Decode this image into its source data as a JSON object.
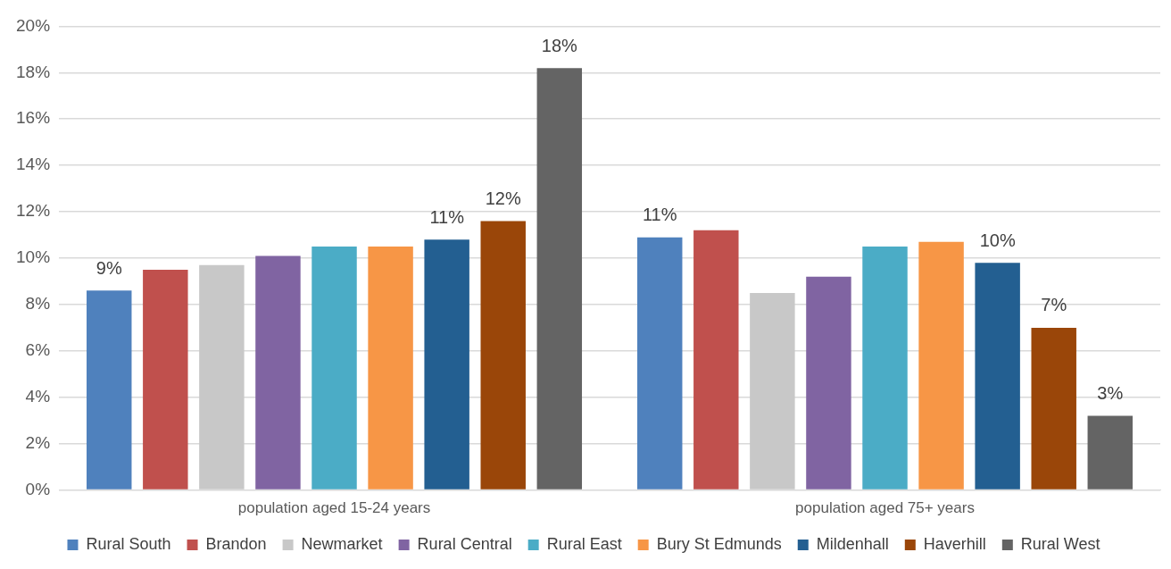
{
  "chart_data": {
    "type": "bar",
    "categories": [
      "population aged 15-24 years",
      "population aged 75+ years"
    ],
    "series": [
      {
        "name": "Rural South",
        "color": "#4f81bd",
        "values": [
          8.6,
          10.9
        ],
        "value_labels": [
          "9%",
          "11%"
        ]
      },
      {
        "name": "Brandon",
        "color": "#c0504d",
        "values": [
          9.5,
          11.2
        ],
        "value_labels": [
          null,
          null
        ]
      },
      {
        "name": "Newmarket",
        "color": "#c8c8c8",
        "values": [
          9.7,
          8.5
        ],
        "value_labels": [
          null,
          null
        ]
      },
      {
        "name": "Rural Central",
        "color": "#8064a2",
        "values": [
          10.1,
          9.2
        ],
        "value_labels": [
          null,
          null
        ]
      },
      {
        "name": "Rural East",
        "color": "#4bacc6",
        "values": [
          10.5,
          10.5
        ],
        "value_labels": [
          null,
          null
        ]
      },
      {
        "name": "Bury St Edmunds",
        "color": "#f79646",
        "values": [
          10.5,
          10.7
        ],
        "value_labels": [
          null,
          null
        ]
      },
      {
        "name": "Mildenhall",
        "color": "#235f91",
        "values": [
          10.8,
          9.8
        ],
        "value_labels": [
          "11%",
          "10%"
        ]
      },
      {
        "name": "Haverhill",
        "color": "#9a4609",
        "values": [
          11.6,
          7.0
        ],
        "value_labels": [
          "12%",
          "7%"
        ]
      },
      {
        "name": "Rural West",
        "color": "#646464",
        "values": [
          18.2,
          3.2
        ],
        "value_labels": [
          "18%",
          "3%"
        ]
      }
    ],
    "ylim": [
      0,
      20
    ],
    "yticks": [
      {
        "value": 0,
        "label": "0%"
      },
      {
        "value": 2,
        "label": "2%"
      },
      {
        "value": 4,
        "label": "4%"
      },
      {
        "value": 6,
        "label": "6%"
      },
      {
        "value": 8,
        "label": "8%"
      },
      {
        "value": 10,
        "label": "10%"
      },
      {
        "value": 12,
        "label": "12%"
      },
      {
        "value": 14,
        "label": "14%"
      },
      {
        "value": 16,
        "label": "16%"
      },
      {
        "value": 18,
        "label": "18%"
      },
      {
        "value": 20,
        "label": "20%"
      }
    ],
    "grid": "y",
    "legend": "bottom"
  }
}
